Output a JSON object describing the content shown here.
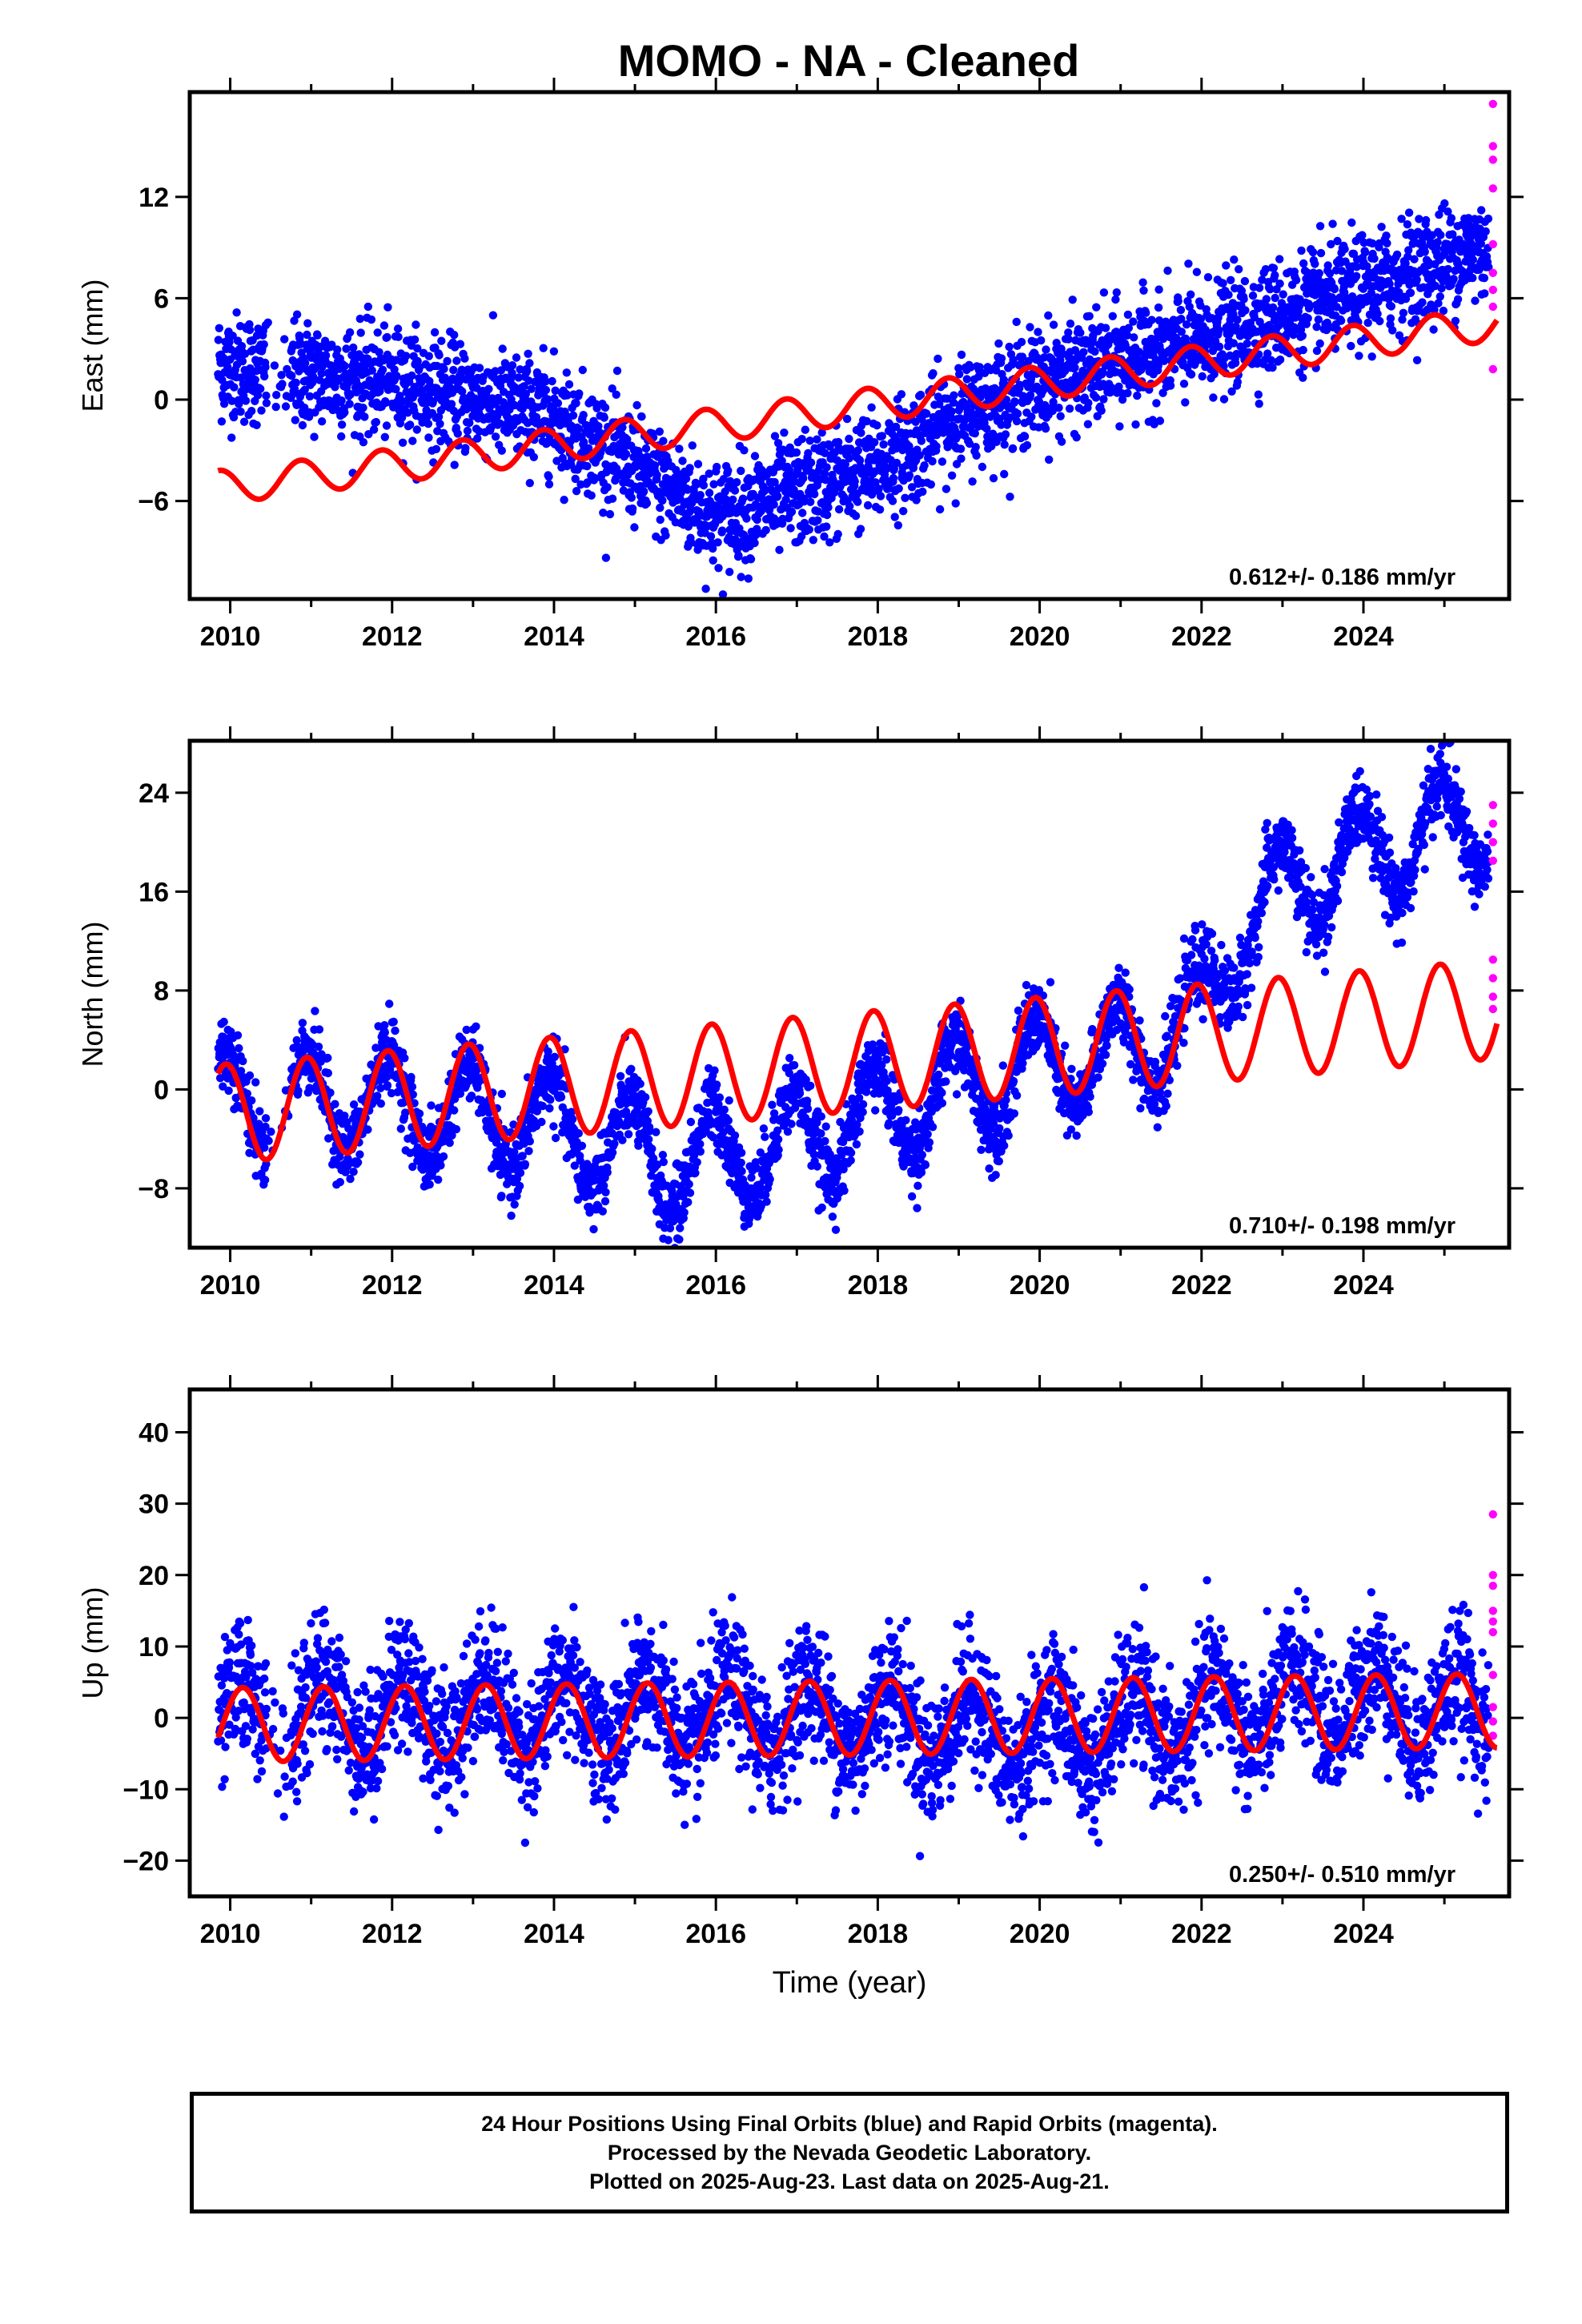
{
  "title": "MOMO  - NA - Cleaned",
  "caption": [
    "24 Hour Positions Using Final Orbits (blue) and Rapid Orbits (magenta).",
    "Processed by the Nevada Geodetic Laboratory.",
    "Plotted on 2025-Aug-23. Last data on 2025-Aug-21."
  ],
  "colors": {
    "final": "#0000ff",
    "rapid": "#ff00ff",
    "model": "#ff0000",
    "axis": "#000000"
  },
  "chart_data": [
    {
      "type": "scatter",
      "ylabel": "East (mm)",
      "xlabel": "",
      "xlim": [
        2009.5,
        2025.8
      ],
      "ylim": [
        -11.8,
        18.2
      ],
      "xticks": [
        2010,
        2012,
        2014,
        2016,
        2018,
        2020,
        2022,
        2024
      ],
      "yticks": [
        -6,
        0,
        6,
        12
      ],
      "rate_annotation": "0.612+/- 0.186 mm/yr",
      "trend_points": {
        "x": [
          2009.9,
          2012,
          2014,
          2016,
          2018,
          2019,
          2020,
          2022,
          2024,
          2025.45
        ],
        "y": [
          2.0,
          1.0,
          -1.0,
          -7.0,
          -4.0,
          -1.0,
          1.0,
          3.5,
          6.5,
          9.0
        ]
      },
      "scatter_spread": 1.6,
      "model": {
        "x": [
          2009.85,
          2016,
          2025.65
        ],
        "y": [
          -5.2,
          -1.5,
          4.5
        ],
        "seasonal_amplitude": 1.0,
        "seasonal_phase": 2.4
      },
      "rapid_points": {
        "x": [
          2025.6,
          2025.6,
          2025.6,
          2025.6,
          2025.6,
          2025.6,
          2025.6,
          2025.6,
          2025.6
        ],
        "y": [
          17.5,
          15.0,
          14.2,
          12.5,
          9.2,
          7.5,
          6.5,
          5.5,
          1.8
        ]
      }
    },
    {
      "type": "scatter",
      "ylabel": "North (mm)",
      "xlabel": "",
      "xlim": [
        2009.5,
        2025.8
      ],
      "ylim": [
        -12.8,
        28.2
      ],
      "xticks": [
        2010,
        2012,
        2014,
        2016,
        2018,
        2020,
        2022,
        2024
      ],
      "yticks": [
        -8,
        0,
        8,
        16,
        24
      ],
      "rate_annotation": "0.710+/- 0.198 mm/yr",
      "trend_points": {
        "x": [
          2009.9,
          2012,
          2014,
          2015.5,
          2017,
          2019,
          2020,
          2021,
          2022,
          2022.5,
          2023,
          2024,
          2025.5
        ],
        "y": [
          -1.0,
          -1.0,
          -3.0,
          -6.0,
          -4.0,
          0.0,
          2.0,
          3.0,
          6.0,
          13.0,
          16.0,
          19.0,
          22.0
        ]
      },
      "scatter_spread": 1.5,
      "seasonal_amplitude": 4.0,
      "model": {
        "x": [
          2009.85,
          2025.65
        ],
        "y": [
          -2.0,
          6.5
        ],
        "seasonal_amplitude": 4.0,
        "seasonal_phase": 1.9
      },
      "rapid_points": {
        "x": [
          2025.6,
          2025.6,
          2025.6,
          2025.6,
          2025.6,
          2025.6,
          2025.6,
          2025.6
        ],
        "y": [
          23.0,
          21.5,
          20.0,
          18.5,
          10.5,
          9.0,
          7.5,
          6.5
        ]
      }
    },
    {
      "type": "scatter",
      "ylabel": "Up (mm)",
      "xlabel": "Time (year)",
      "xlim": [
        2009.5,
        2025.8
      ],
      "ylim": [
        -25,
        46
      ],
      "xticks": [
        2010,
        2012,
        2014,
        2016,
        2018,
        2020,
        2022,
        2024
      ],
      "yticks": [
        -20,
        -10,
        0,
        10,
        20,
        30,
        40
      ],
      "rate_annotation": "0.250+/- 0.510 mm/yr",
      "trend_points": {
        "x": [
          2009.9,
          2012,
          2015,
          2018,
          2020,
          2022,
          2023,
          2024,
          2025.5
        ],
        "y": [
          0.0,
          1.0,
          0.5,
          0.0,
          -3.0,
          0.0,
          2.0,
          3.0,
          0.0
        ]
      },
      "scatter_spread": 4.5,
      "seasonal_amplitude": 5.0,
      "model": {
        "x": [
          2009.85,
          2025.65
        ],
        "y": [
          -1.0,
          1.0
        ],
        "seasonal_amplitude": 5.2,
        "seasonal_phase": 0.6
      },
      "rapid_points": {
        "x": [
          2025.6,
          2025.6,
          2025.6,
          2025.6,
          2025.6,
          2025.6,
          2025.6,
          2025.6,
          2025.6,
          2025.6
        ],
        "y": [
          28.5,
          20.0,
          18.5,
          15.0,
          13.5,
          12.0,
          6.0,
          1.5,
          -0.5,
          -2.5
        ]
      }
    }
  ]
}
